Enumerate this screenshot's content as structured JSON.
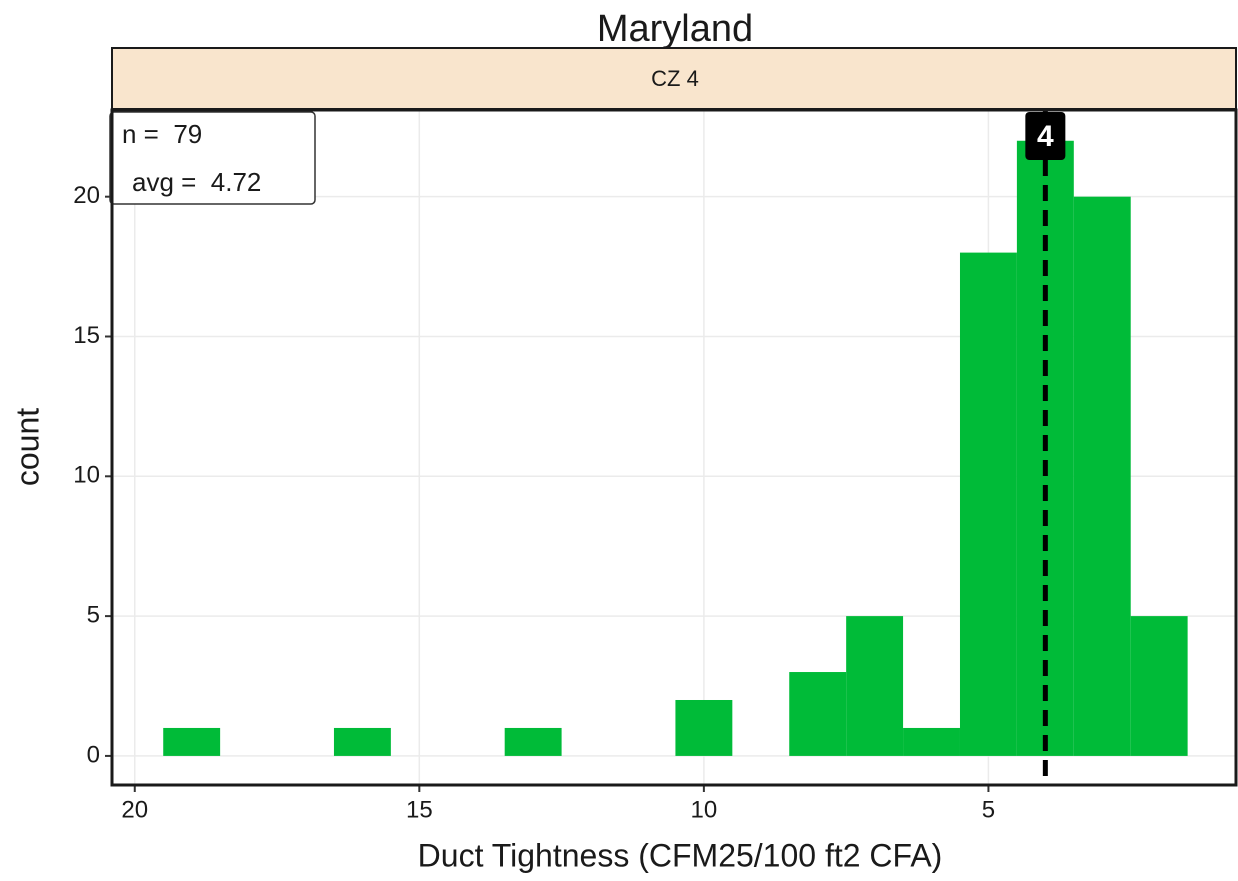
{
  "chart_data": {
    "type": "histogram",
    "title": "Maryland",
    "facet_label": "CZ 4",
    "x_label": "Duct Tightness (CFM25/100 ft2 CFA)",
    "y_label": "count",
    "bins": [
      1.5,
      2.5,
      3.5,
      4.5,
      5.5,
      6.5,
      7.5,
      8.5,
      9.5,
      10.5,
      11.5,
      12.5,
      13.5,
      14.5,
      15.5,
      16.5,
      17.5,
      18.5,
      19.5
    ],
    "values": [
      5,
      20,
      22,
      18,
      1,
      5,
      3,
      0,
      2,
      0,
      0,
      1,
      0,
      0,
      1,
      0,
      0,
      1
    ],
    "color": "#00bb38",
    "xlim": [
      20.4,
      0.65
    ],
    "x_reversed": true,
    "xticks": [
      20,
      15,
      10,
      5
    ],
    "ylim": [
      -1.04,
      23.1
    ],
    "yticks": [
      0,
      5,
      10,
      15,
      20
    ],
    "grid": true,
    "vline": 4,
    "annotations": [
      "n =  79",
      "avg =  4.72"
    ]
  }
}
